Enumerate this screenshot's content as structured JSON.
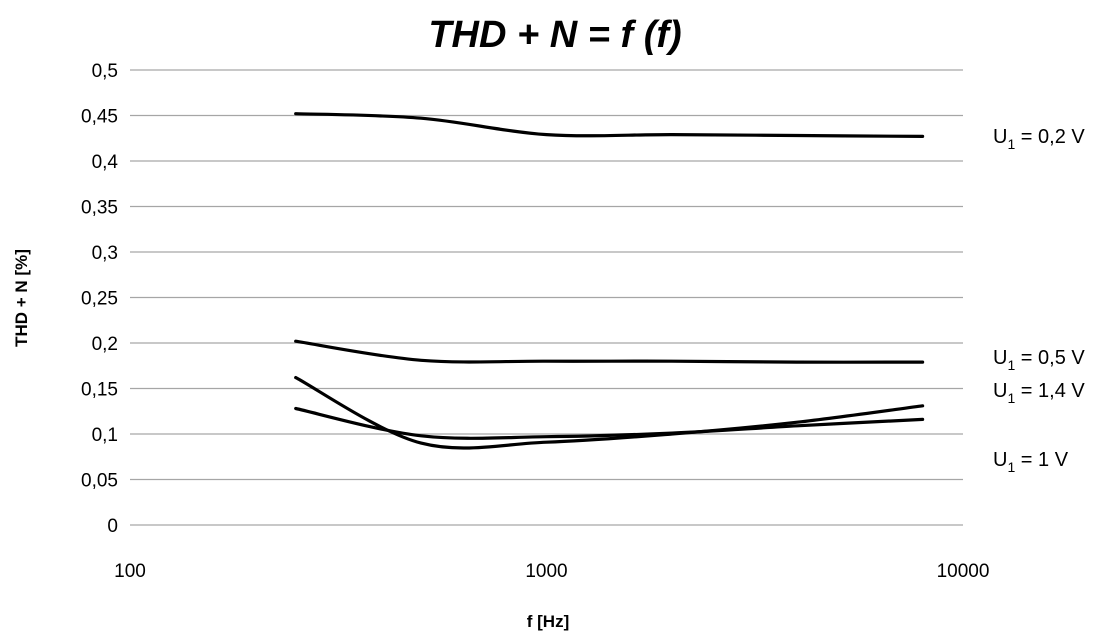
{
  "chart_data": {
    "type": "line",
    "title": "THD + N = f (f)",
    "xlabel": "f [Hz]",
    "ylabel": "THD + N [%]",
    "x_scale": "log",
    "xlim": [
      100,
      10000
    ],
    "ylim": [
      0,
      0.5
    ],
    "x_ticks": [
      "100",
      "1000",
      "10000"
    ],
    "y_ticks": [
      "0",
      "0,05",
      "0,1",
      "0,15",
      "0,2",
      "0,25",
      "0,3",
      "0,35",
      "0,4",
      "0,45",
      "0,5"
    ],
    "grid": "horizontal",
    "legend": "right, labels at line ends",
    "series": [
      {
        "name": "U1 = 0,2 V",
        "label_main": "U",
        "label_sub": "1",
        "label_rest": " = 0,2 V",
        "x": [
          250,
          500,
          1000,
          2000,
          4000,
          8000
        ],
        "y": [
          0.452,
          0.447,
          0.429,
          0.429,
          0.428,
          0.427
        ]
      },
      {
        "name": "U1 = 0,5 V",
        "label_main": "U",
        "label_sub": "1",
        "label_rest": " = 0,5 V",
        "x": [
          250,
          500,
          1000,
          2000,
          4000,
          8000
        ],
        "y": [
          0.202,
          0.181,
          0.18,
          0.18,
          0.179,
          0.179
        ]
      },
      {
        "name": "U1 = 1,4 V",
        "label_main": "U",
        "label_sub": "1",
        "label_rest": " = 1,4 V",
        "x": [
          250,
          500,
          1000,
          2000,
          4000,
          8000
        ],
        "y": [
          0.162,
          0.09,
          0.091,
          0.1,
          0.113,
          0.131
        ]
      },
      {
        "name": "U1 = 1 V",
        "label_main": "U",
        "label_sub": "1",
        "label_rest": " = 1 V",
        "x": [
          250,
          500,
          1000,
          2000,
          4000,
          8000
        ],
        "y": [
          0.128,
          0.098,
          0.097,
          0.101,
          0.109,
          0.116
        ]
      }
    ]
  }
}
